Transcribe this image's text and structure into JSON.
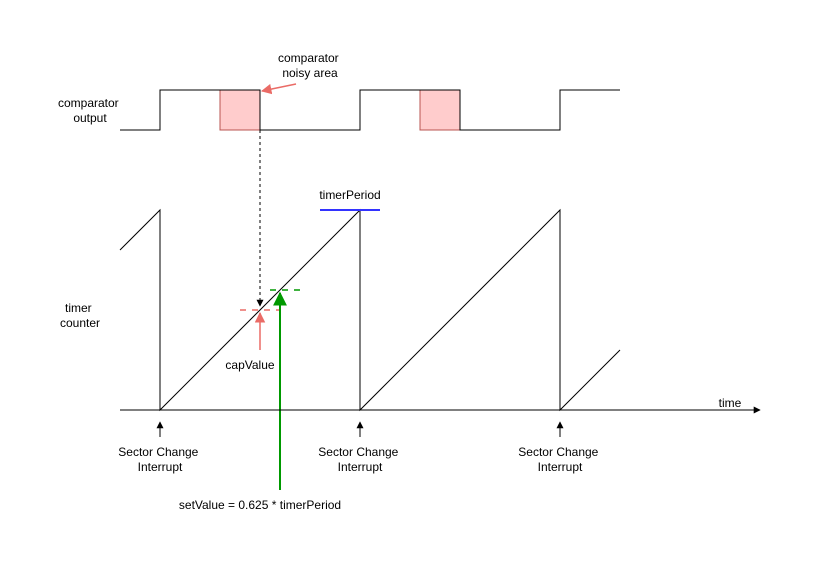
{
  "labels": {
    "comparator_output": [
      "comparator",
      "output"
    ],
    "comparator_noisy_area": [
      "comparator",
      "noisy area"
    ],
    "timer_counter": [
      "timer",
      "counter"
    ],
    "timer_period": "timerPeriod",
    "cap_value": "capValue",
    "time_axis": "time",
    "set_value": "setValue = 0.625 * timerPeriod",
    "sector_change_interrupts": [
      [
        "Sector Change",
        "Interrupt"
      ],
      [
        "Sector Change",
        "Interrupt"
      ],
      [
        "Sector Change",
        "Interrupt"
      ]
    ]
  },
  "colors": {
    "line": "#000000",
    "noisy_fill": "#ffcccc",
    "noisy_stroke": "#b85450",
    "red_marker": "#ea6b66",
    "timer_period_marker": "#3333ff",
    "set_value_marker": "#009900"
  }
}
